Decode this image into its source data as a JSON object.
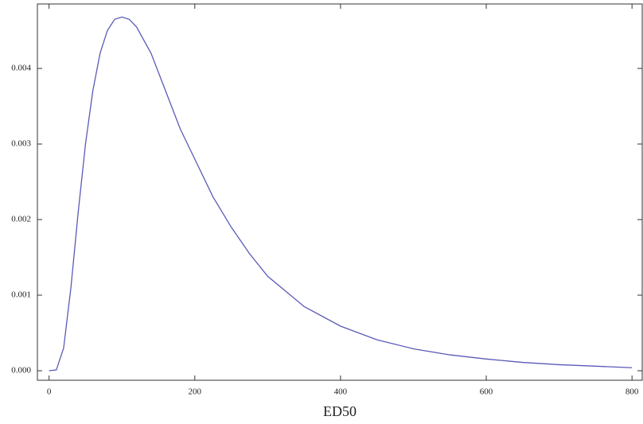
{
  "chart_data": {
    "type": "line",
    "x_label": "ED50",
    "x": [
      0,
      10,
      20,
      30,
      40,
      50,
      60,
      70,
      80,
      90,
      100,
      110,
      120,
      140,
      160,
      180,
      200,
      225,
      250,
      275,
      300,
      350,
      400,
      450,
      500,
      550,
      600,
      650,
      700,
      750,
      800
    ],
    "series": [
      {
        "color": "#5a5ab8",
        "values": [
          0,
          1e-05,
          0.0003,
          0.0011,
          0.0021,
          0.003,
          0.0037,
          0.0042,
          0.0045,
          0.00465,
          0.00468,
          0.00465,
          0.00455,
          0.0042,
          0.0037,
          0.0032,
          0.0028,
          0.0023,
          0.0019,
          0.00155,
          0.00125,
          0.00085,
          0.00059,
          0.00041,
          0.00029,
          0.00021,
          0.000155,
          0.00011,
          8e-05,
          6e-05,
          4e-05
        ]
      }
    ],
    "xlim": [
      -16,
      814
    ],
    "ylim": [
      -0.000126,
      0.004853
    ],
    "xticks": [
      0,
      200,
      400,
      600,
      800
    ],
    "yticks": [
      {
        "value": 0,
        "label": "0.000"
      },
      {
        "value": 0.001,
        "label": "0.001"
      },
      {
        "value": 0.002,
        "label": "0.002"
      },
      {
        "value": 0.003,
        "label": "0.003"
      },
      {
        "value": 0.004,
        "label": "0.004"
      }
    ]
  }
}
